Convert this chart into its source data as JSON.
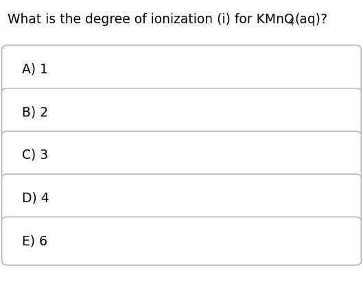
{
  "question_main": "What is the degree of ionization (i) for KMnO",
  "question_sub": "4",
  "question_end": "(aq)?",
  "choices": [
    "A) 1",
    "B) 2",
    "C) 3",
    "D) 4",
    "E) 6"
  ],
  "background_color": "#ffffff",
  "box_edge_color": "#aaaaaa",
  "text_color": "#000000",
  "question_fontsize": 13.5,
  "choice_fontsize": 13.5,
  "fig_width": 5.29,
  "fig_height": 4.26,
  "dpi": 100
}
